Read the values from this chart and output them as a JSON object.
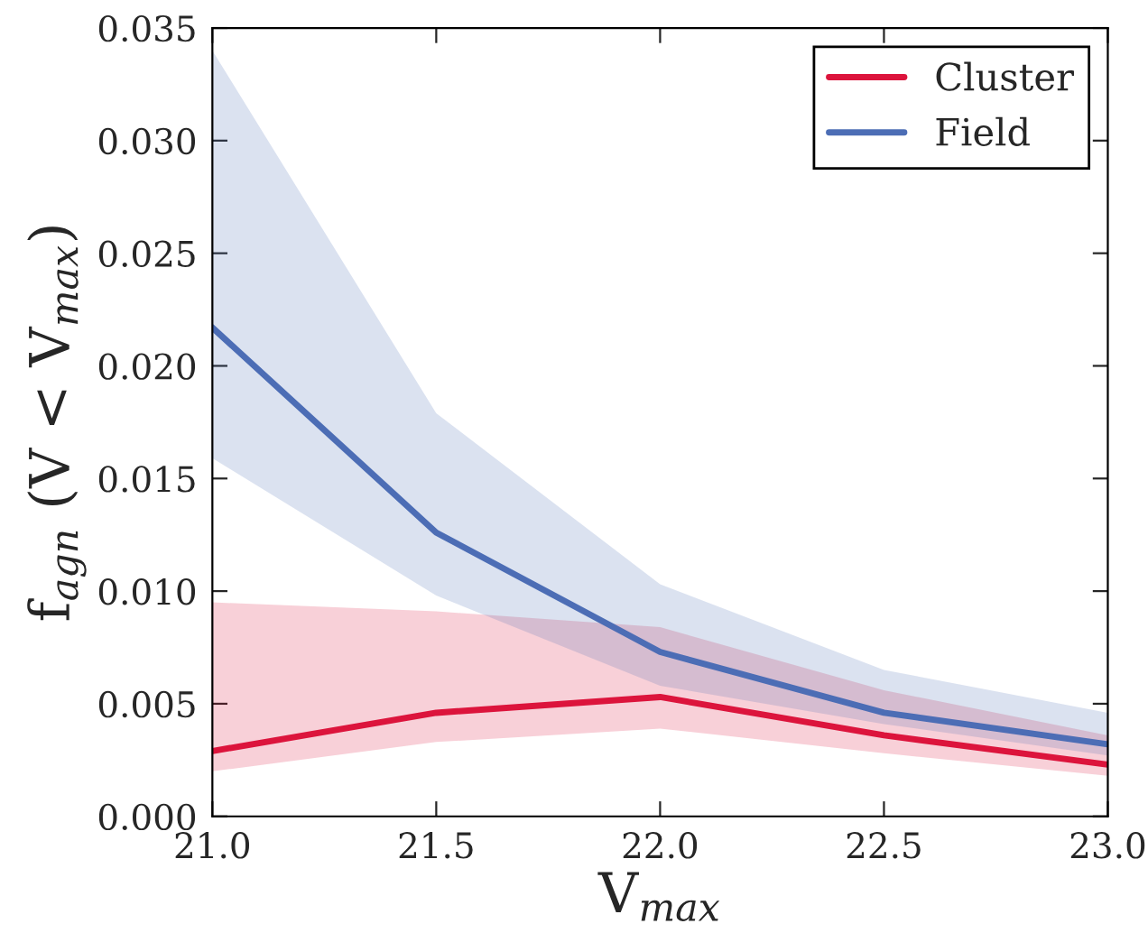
{
  "chart_data": {
    "type": "line",
    "xlabel": "V$_{max}$",
    "ylabel": "f$_{agn}$ (V < V$_{max}$)",
    "x": [
      21.0,
      21.5,
      22.0,
      22.5,
      23.0
    ],
    "series": [
      {
        "name": "Cluster",
        "color": "#dc143c",
        "values": [
          0.0029,
          0.0046,
          0.0053,
          0.0036,
          0.0023
        ],
        "lower": [
          0.002,
          0.0033,
          0.0039,
          0.0028,
          0.0018
        ],
        "upper": [
          0.0095,
          0.0091,
          0.0084,
          0.0056,
          0.0036
        ]
      },
      {
        "name": "Field",
        "color": "#4c6db5",
        "values": [
          0.0217,
          0.0126,
          0.0073,
          0.0046,
          0.0032
        ],
        "lower": [
          0.0159,
          0.0098,
          0.0058,
          0.0041,
          0.0027
        ],
        "upper": [
          0.034,
          0.0179,
          0.0103,
          0.0065,
          0.0046
        ]
      }
    ],
    "xlim": [
      21.0,
      23.0
    ],
    "xticks": [
      {
        "value": 21.0,
        "label": "21.0"
      },
      {
        "value": 21.5,
        "label": "21.5"
      },
      {
        "value": 22.0,
        "label": "22.0"
      },
      {
        "value": 22.5,
        "label": "22.5"
      },
      {
        "value": 23.0,
        "label": "23.0"
      }
    ],
    "ylim": [
      0,
      0.035
    ],
    "yticks": [
      {
        "value": 0,
        "label": "0.000"
      },
      {
        "value": 0.005,
        "label": "0.005"
      },
      {
        "value": 0.01,
        "label": "0.010"
      },
      {
        "value": 0.015,
        "label": "0.015"
      },
      {
        "value": 0.02,
        "label": "0.020"
      },
      {
        "value": 0.025,
        "label": "0.025"
      },
      {
        "value": 0.03,
        "label": "0.030"
      },
      {
        "value": 0.035,
        "label": "0.035"
      }
    ],
    "legend": "top right",
    "grid": false,
    "marker": "none",
    "line_style": "solid"
  }
}
